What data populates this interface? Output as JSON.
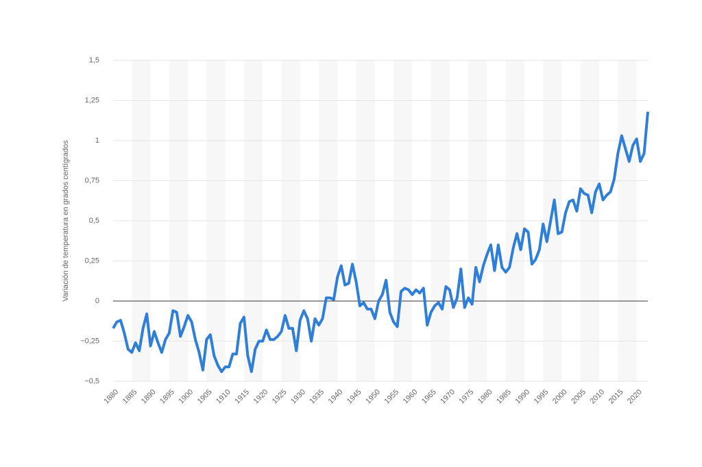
{
  "chart_data": {
    "type": "line",
    "y_label": "Variación de temperatura en grados centígrados",
    "x": [
      1880,
      1881,
      1882,
      1883,
      1884,
      1885,
      1886,
      1887,
      1888,
      1889,
      1890,
      1891,
      1892,
      1893,
      1894,
      1895,
      1896,
      1897,
      1898,
      1899,
      1900,
      1901,
      1902,
      1903,
      1904,
      1905,
      1906,
      1907,
      1908,
      1909,
      1910,
      1911,
      1912,
      1913,
      1914,
      1915,
      1916,
      1917,
      1918,
      1919,
      1920,
      1921,
      1922,
      1923,
      1924,
      1925,
      1926,
      1927,
      1928,
      1929,
      1930,
      1931,
      1932,
      1933,
      1934,
      1935,
      1936,
      1937,
      1938,
      1939,
      1940,
      1941,
      1942,
      1943,
      1944,
      1945,
      1946,
      1947,
      1948,
      1949,
      1950,
      1951,
      1952,
      1953,
      1954,
      1955,
      1956,
      1957,
      1958,
      1959,
      1960,
      1961,
      1962,
      1963,
      1964,
      1965,
      1966,
      1967,
      1968,
      1969,
      1970,
      1971,
      1972,
      1973,
      1974,
      1975,
      1976,
      1977,
      1978,
      1979,
      1980,
      1981,
      1982,
      1983,
      1984,
      1985,
      1986,
      1987,
      1988,
      1989,
      1990,
      1991,
      1992,
      1993,
      1994,
      1995,
      1996,
      1997,
      1998,
      1999,
      2000,
      2001,
      2002,
      2003,
      2004,
      2005,
      2006,
      2007,
      2008,
      2009,
      2010,
      2011,
      2012,
      2013,
      2014,
      2015,
      2016,
      2017,
      2018,
      2019,
      2020,
      2021,
      2022,
      2023
    ],
    "values": [
      -0.17,
      -0.13,
      -0.12,
      -0.2,
      -0.3,
      -0.32,
      -0.26,
      -0.31,
      -0.17,
      -0.08,
      -0.28,
      -0.19,
      -0.26,
      -0.32,
      -0.24,
      -0.2,
      -0.06,
      -0.07,
      -0.22,
      -0.16,
      -0.09,
      -0.13,
      -0.24,
      -0.32,
      -0.43,
      -0.24,
      -0.21,
      -0.34,
      -0.4,
      -0.44,
      -0.41,
      -0.41,
      -0.33,
      -0.33,
      -0.14,
      -0.1,
      -0.34,
      -0.44,
      -0.3,
      -0.25,
      -0.25,
      -0.18,
      -0.24,
      -0.24,
      -0.22,
      -0.19,
      -0.09,
      -0.17,
      -0.17,
      -0.31,
      -0.12,
      -0.06,
      -0.11,
      -0.25,
      -0.11,
      -0.15,
      -0.11,
      0.02,
      0.02,
      0.01,
      0.15,
      0.22,
      0.1,
      0.11,
      0.23,
      0.12,
      -0.03,
      -0.01,
      -0.05,
      -0.05,
      -0.11,
      0.0,
      0.04,
      0.13,
      -0.07,
      -0.13,
      -0.16,
      0.06,
      0.08,
      0.07,
      0.04,
      0.07,
      0.05,
      0.08,
      -0.15,
      -0.07,
      -0.03,
      -0.01,
      -0.05,
      0.09,
      0.07,
      -0.04,
      0.02,
      0.2,
      -0.04,
      0.02,
      -0.02,
      0.21,
      0.12,
      0.22,
      0.29,
      0.35,
      0.19,
      0.35,
      0.21,
      0.18,
      0.21,
      0.33,
      0.42,
      0.32,
      0.45,
      0.43,
      0.23,
      0.26,
      0.32,
      0.48,
      0.37,
      0.5,
      0.63,
      0.42,
      0.43,
      0.55,
      0.62,
      0.63,
      0.56,
      0.7,
      0.67,
      0.66,
      0.55,
      0.68,
      0.73,
      0.63,
      0.66,
      0.68,
      0.76,
      0.92,
      1.03,
      0.95,
      0.87,
      0.97,
      1.01,
      0.87,
      0.92,
      1.18
    ],
    "color": "#2f7ed8",
    "xlim": [
      1880,
      2023
    ],
    "xticks": [
      1880,
      1885,
      1890,
      1895,
      1900,
      1905,
      1910,
      1915,
      1920,
      1925,
      1930,
      1935,
      1940,
      1945,
      1950,
      1955,
      1960,
      1965,
      1970,
      1975,
      1980,
      1985,
      1990,
      1995,
      2000,
      2005,
      2010,
      2015,
      2020
    ],
    "ylim": [
      -0.5,
      1.5
    ],
    "yticks": [
      {
        "value": -0.5,
        "label": "−0,5"
      },
      {
        "value": -0.25,
        "label": "−0,25"
      },
      0,
      {
        "value": 0.25,
        "label": "0,25"
      },
      {
        "value": 0.5,
        "label": "0,5"
      },
      {
        "value": 0.75,
        "label": "0,75"
      },
      1,
      {
        "value": 1.25,
        "label": "1,25"
      },
      {
        "value": 1.5,
        "label": "1,5"
      }
    ],
    "grid": true
  }
}
